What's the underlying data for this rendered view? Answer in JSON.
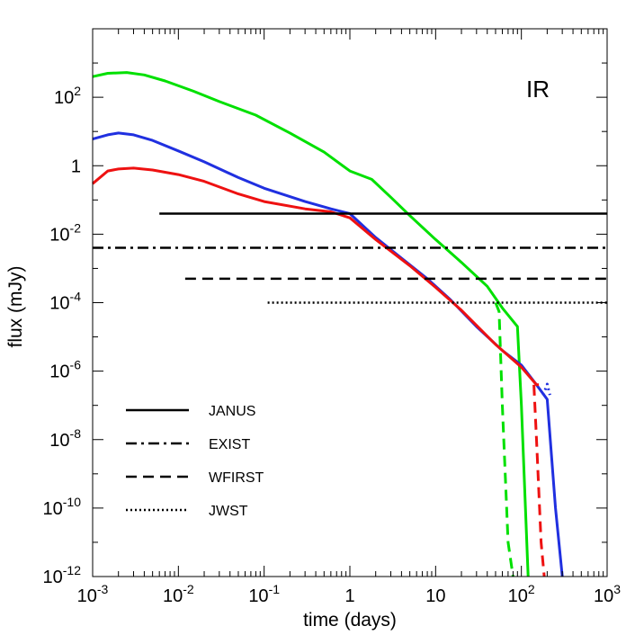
{
  "chart_data": {
    "type": "line",
    "title": "",
    "annotation": "IR",
    "xlabel": "time (days)",
    "ylabel": "flux (mJy)",
    "xscale": "log",
    "yscale": "log",
    "xlim": [
      0.001,
      1000
    ],
    "ylim": [
      1e-12,
      10000
    ],
    "grid": false,
    "legend_position": "bottom-left",
    "x_ticks": [
      {
        "value": 0.001,
        "base": "10",
        "exp": "-3"
      },
      {
        "value": 0.01,
        "base": "10",
        "exp": "-2"
      },
      {
        "value": 0.1,
        "base": "10",
        "exp": "-1"
      },
      {
        "value": 1,
        "base": "1",
        "exp": ""
      },
      {
        "value": 10,
        "base": "10",
        "exp": ""
      },
      {
        "value": 100,
        "base": "10",
        "exp": "2"
      },
      {
        "value": 1000,
        "base": "10",
        "exp": "3"
      }
    ],
    "y_ticks": [
      {
        "value": 100,
        "base": "10",
        "exp": "2"
      },
      {
        "value": 1,
        "base": "1",
        "exp": ""
      },
      {
        "value": 0.01,
        "base": "10",
        "exp": "-2"
      },
      {
        "value": 0.0001,
        "base": "10",
        "exp": "-4"
      },
      {
        "value": 1e-06,
        "base": "10",
        "exp": "-6"
      },
      {
        "value": 1e-08,
        "base": "10",
        "exp": "-8"
      },
      {
        "value": 1e-10,
        "base": "10",
        "exp": "-10"
      },
      {
        "value": 1e-12,
        "base": "10",
        "exp": "-12"
      }
    ],
    "series": [
      {
        "color": "#00e000",
        "style": "solid",
        "x": [
          0.001,
          0.0015,
          0.0025,
          0.004,
          0.007,
          0.015,
          0.03,
          0.08,
          0.2,
          0.5,
          1,
          1.8,
          3,
          5,
          10,
          20,
          40,
          60,
          90,
          100,
          120
        ],
        "y": [
          400,
          500,
          530,
          450,
          300,
          150,
          75,
          30,
          9,
          2.5,
          0.7,
          0.4,
          0.12,
          0.035,
          0.007,
          0.0015,
          0.0003,
          7e-05,
          2e-05,
          1e-07,
          1e-13
        ]
      },
      {
        "color": "#00e000",
        "style": "dashed",
        "x": [
          50,
          55,
          60,
          70,
          80
        ],
        "y": [
          0.0001,
          5.5e-05,
          1e-07,
          1e-11,
          1e-13
        ]
      },
      {
        "color": "#2030e0",
        "style": "solid",
        "x": [
          0.001,
          0.0015,
          0.002,
          0.003,
          0.005,
          0.01,
          0.02,
          0.05,
          0.1,
          0.3,
          0.6,
          1,
          2,
          4,
          8,
          15,
          30,
          60,
          100,
          150,
          200,
          250,
          300
        ],
        "y": [
          6,
          8,
          9,
          8,
          5.5,
          2.7,
          1.3,
          0.45,
          0.22,
          0.09,
          0.055,
          0.04,
          0.008,
          0.002,
          0.0005,
          0.00012,
          2e-05,
          4e-06,
          1.5e-06,
          4e-07,
          1.5e-07,
          1e-10,
          1e-13
        ]
      },
      {
        "color": "#2030e0",
        "style": "dotted",
        "x": [
          180,
          200,
          215
        ],
        "y": [
          2e-07,
          4.2e-07,
          2e-07
        ]
      },
      {
        "color": "#ee1111",
        "style": "solid",
        "x": [
          0.001,
          0.0015,
          0.002,
          0.003,
          0.005,
          0.01,
          0.02,
          0.05,
          0.1,
          0.3,
          0.6,
          1,
          2,
          5,
          10,
          20,
          50,
          100,
          150,
          160
        ],
        "y": [
          0.3,
          0.7,
          0.8,
          0.85,
          0.75,
          0.55,
          0.35,
          0.15,
          0.09,
          0.055,
          0.045,
          0.03,
          0.007,
          0.0012,
          0.00028,
          6e-05,
          6e-06,
          1.3e-06,
          4e-07,
          4e-07
        ]
      },
      {
        "color": "#ee1111",
        "style": "dashed",
        "x": [
          140,
          150,
          170,
          185
        ],
        "y": [
          4e-07,
          1e-08,
          1e-11,
          1e-13
        ]
      }
    ],
    "thresholds": [
      {
        "name": "JANUS",
        "style": "solid",
        "y": 0.04,
        "x_start": 0.006,
        "x_end": 1000
      },
      {
        "name": "EXIST",
        "style": "dashdot",
        "y": 0.004,
        "x_start": 0.001,
        "x_end": 1000
      },
      {
        "name": "WFIRST",
        "style": "dashed",
        "y": 0.0005,
        "x_start": 0.012,
        "x_end": 1000
      },
      {
        "name": "JWST",
        "style": "dotted",
        "y": 0.0001,
        "x_start": 0.11,
        "x_end": 1000
      }
    ]
  }
}
